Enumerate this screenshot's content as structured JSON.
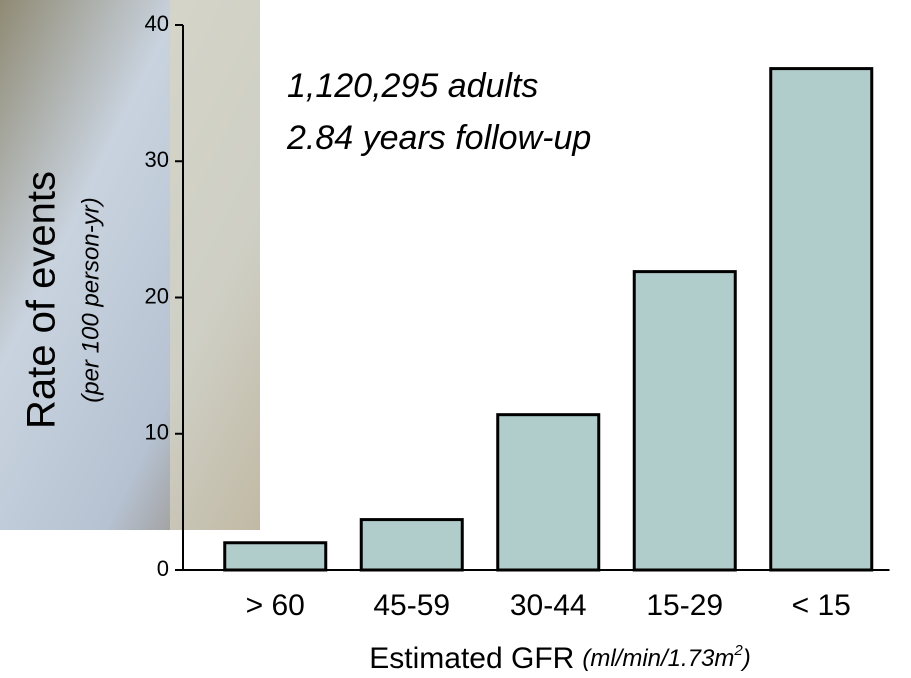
{
  "chart_data": {
    "type": "bar",
    "annotations": [
      "1,120,295 adults",
      "2.84 years follow-up"
    ],
    "ylabel": "Rate of events",
    "ylabel_units": "(per 100 person-yr)",
    "xlabel": "Estimated GFR",
    "xlabel_units_parts": [
      "(ml/min/1.73m",
      "2",
      ")"
    ],
    "categories": [
      "> 60",
      "45-59",
      "30-44",
      "15-29",
      "< 15"
    ],
    "values": [
      2.0,
      3.7,
      11.4,
      21.9,
      36.8
    ],
    "color": "#b0cccb",
    "ylim": [
      0,
      40
    ],
    "yticks": [
      0,
      10,
      20,
      30,
      40
    ]
  }
}
